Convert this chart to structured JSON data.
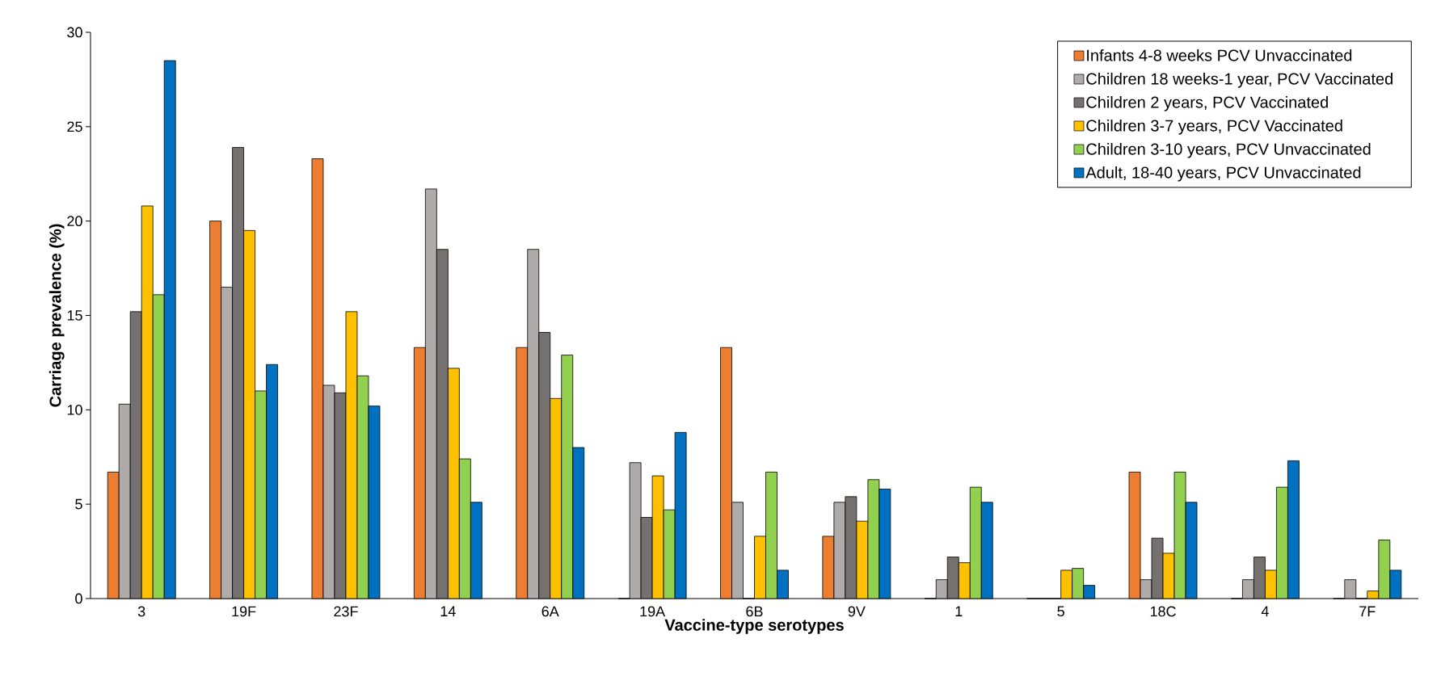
{
  "chart_data": {
    "type": "bar",
    "xlabel": "Vaccine-type serotypes",
    "ylabel": "Carriage prevalence (%)",
    "categories": [
      "3",
      "19F",
      "23F",
      "14",
      "6A",
      "19A",
      "6B",
      "9V",
      "1",
      "5",
      "18C",
      "4",
      "7F"
    ],
    "series": [
      {
        "name": "Infants 4-8 weeks PCV Unvaccinated",
        "color": "#ed7d31",
        "values": [
          6.7,
          20.0,
          23.3,
          13.3,
          13.3,
          0,
          13.3,
          3.3,
          0,
          0,
          6.7,
          0,
          0
        ]
      },
      {
        "name": "Children 18 weeks-1 year, PCV Vaccinated",
        "color": "#afabab",
        "values": [
          10.3,
          16.5,
          11.3,
          21.7,
          18.5,
          7.2,
          5.1,
          5.1,
          1.0,
          0,
          1.0,
          1.0,
          1.0
        ]
      },
      {
        "name": "Children 2 years, PCV Vaccinated",
        "color": "#767171",
        "values": [
          15.2,
          23.9,
          10.9,
          18.5,
          14.1,
          4.3,
          0,
          5.4,
          2.2,
          0,
          3.2,
          2.2,
          0
        ]
      },
      {
        "name": "Children 3-7 years, PCV Vaccinated",
        "color": "#ffc000",
        "values": [
          20.8,
          19.5,
          15.2,
          12.2,
          10.6,
          6.5,
          3.3,
          4.1,
          1.9,
          1.5,
          2.4,
          1.5,
          0.4
        ]
      },
      {
        "name": "Children 3-10 years, PCV Unvaccinated",
        "color": "#92d050",
        "values": [
          16.1,
          11.0,
          11.8,
          7.4,
          12.9,
          4.7,
          6.7,
          6.3,
          5.9,
          1.6,
          6.7,
          5.9,
          3.1
        ]
      },
      {
        "name": "Adult, 18-40 years, PCV Unvaccinated",
        "color": "#0070c0",
        "values": [
          28.5,
          12.4,
          10.2,
          5.1,
          8.0,
          8.8,
          1.5,
          5.8,
          5.1,
          0.7,
          5.1,
          7.3,
          1.5
        ]
      }
    ],
    "ylim": [
      0,
      30
    ],
    "yticks": [
      0,
      5,
      10,
      15,
      20,
      25,
      30
    ],
    "legend": "top right",
    "grid": false
  }
}
